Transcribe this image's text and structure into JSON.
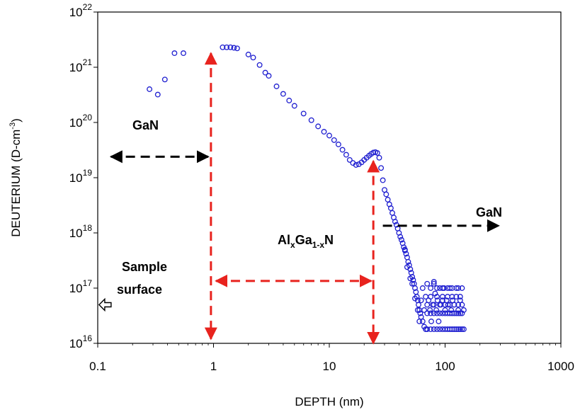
{
  "chart_data": {
    "type": "scatter",
    "title": "",
    "xlabel": "DEPTH  (nm)",
    "ylabel_main": "DEUTERIUM (D-cm",
    "ylabel_sup": "-3",
    "ylabel_close": ")",
    "x_scale": "log",
    "y_scale": "log",
    "xlim": [
      0.1,
      1000
    ],
    "ylim": [
      1e+16,
      1e+22
    ],
    "x_ticks": [
      {
        "value": 0.1,
        "label": "0.1"
      },
      {
        "value": 1,
        "label": "1"
      },
      {
        "value": 10,
        "label": "10"
      },
      {
        "value": 100,
        "label": "100"
      },
      {
        "value": 1000,
        "label": "1000"
      }
    ],
    "y_ticks": [
      {
        "value": 1e+16,
        "base": "10",
        "exp": "16"
      },
      {
        "value": 1e+17,
        "base": "10",
        "exp": "17"
      },
      {
        "value": 1e+18,
        "base": "10",
        "exp": "18"
      },
      {
        "value": 1e+19,
        "base": "10",
        "exp": "19"
      },
      {
        "value": 1e+20,
        "base": "10",
        "exp": "20"
      },
      {
        "value": 1e+21,
        "base": "10",
        "exp": "21"
      },
      {
        "value": 1e+22,
        "base": "10",
        "exp": "22"
      }
    ],
    "grid": false,
    "marker_color": "#1f1fd0",
    "series": [
      {
        "points": [
          [
            0.28,
            4e+20
          ],
          [
            0.33,
            3.2e+20
          ],
          [
            0.38,
            6e+20
          ],
          [
            0.46,
            1.8e+21
          ],
          [
            0.55,
            1.8e+21
          ],
          [
            1.2,
            2.3e+21
          ],
          [
            1.3,
            2.3e+21
          ],
          [
            1.4,
            2.3e+21
          ],
          [
            1.5,
            2.25e+21
          ],
          [
            1.6,
            2.2e+21
          ],
          [
            2.0,
            1.7e+21
          ],
          [
            2.2,
            1.5e+21
          ],
          [
            2.5,
            1.1e+21
          ],
          [
            2.8,
            8e+20
          ],
          [
            3.0,
            7e+20
          ],
          [
            3.5,
            4.5e+20
          ],
          [
            4.0,
            3.3e+20
          ],
          [
            4.5,
            2.5e+20
          ],
          [
            5.0,
            2e+20
          ],
          [
            6.0,
            1.45e+20
          ],
          [
            7.0,
            1.1e+20
          ],
          [
            8.0,
            8.5e+19
          ],
          [
            9.0,
            6.8e+19
          ],
          [
            10.0,
            5.8e+19
          ],
          [
            11.0,
            4.8e+19
          ],
          [
            12.0,
            4e+19
          ],
          [
            13.0,
            3.2e+19
          ],
          [
            14.0,
            2.6e+19
          ],
          [
            15.0,
            2.1e+19
          ],
          [
            16.0,
            1.85e+19
          ],
          [
            17.0,
            1.7e+19
          ],
          [
            18.0,
            1.75e+19
          ],
          [
            19.0,
            1.9e+19
          ],
          [
            20.0,
            2.1e+19
          ],
          [
            21.0,
            2.3e+19
          ],
          [
            22.0,
            2.5e+19
          ],
          [
            23.0,
            2.7e+19
          ],
          [
            24.0,
            2.85e+19
          ],
          [
            25.0,
            2.9e+19
          ],
          [
            26.0,
            2.8e+19
          ],
          [
            27.0,
            2.3e+19
          ],
          [
            28.0,
            1.5e+19
          ],
          [
            29.0,
            9e+18
          ],
          [
            30.0,
            6e+18
          ],
          [
            31.0,
            5e+18
          ],
          [
            32.0,
            4e+18
          ],
          [
            33.0,
            3.3e+18
          ],
          [
            34.0,
            2.8e+18
          ],
          [
            35.0,
            2.3e+18
          ],
          [
            36.0,
            1.9e+18
          ],
          [
            37.0,
            1.6e+18
          ],
          [
            38.0,
            1.4e+18
          ],
          [
            39.0,
            1.2e+18
          ],
          [
            40.0,
            1e+18
          ],
          [
            41.0,
            8.5e+17
          ],
          [
            42.0,
            7.5e+17
          ],
          [
            43.0,
            6.5e+17
          ],
          [
            44.0,
            5.5e+17
          ],
          [
            45.0,
            4.8e+17
          ],
          [
            46.0,
            4.2e+17
          ],
          [
            47.0,
            3.6e+17
          ],
          [
            48.0,
            3e+17
          ],
          [
            49.0,
            2.6e+17
          ],
          [
            50.0,
            2.2e+17
          ],
          [
            51.0,
            1.9e+17
          ],
          [
            52.0,
            1.6e+17
          ],
          [
            53.0,
            1.4e+17
          ],
          [
            54.0,
            1.2e+17
          ],
          [
            55.0,
            1e+17
          ],
          [
            56.0,
            8.5e+16
          ],
          [
            57.0,
            7e+16
          ],
          [
            58.0,
            6e+16
          ],
          [
            59.0,
            5e+16
          ],
          [
            60.0,
            4e+16
          ],
          [
            61.0,
            3.5e+16
          ],
          [
            62.0,
            3e+16
          ],
          [
            64.0,
            2.5e+16
          ],
          [
            66.0,
            2e+16
          ],
          [
            68.0,
            1.8e+16
          ],
          [
            45.0,
            5e+17
          ],
          [
            47.0,
            2.4e+17
          ],
          [
            50.0,
            1.5e+17
          ],
          [
            52.0,
            1.2e+17
          ],
          [
            55.0,
            6.5e+16
          ],
          [
            58.0,
            4e+16
          ],
          [
            60.0,
            2.5e+16
          ],
          [
            62.0,
            6e+16
          ],
          [
            64.0,
            1e+17
          ],
          [
            66.0,
            4e+16
          ],
          [
            68.0,
            7e+16
          ],
          [
            70.0,
            1.2e+17
          ],
          [
            72.0,
            6e+16
          ],
          [
            74.0,
            4e+16
          ],
          [
            76.0,
            2.5e+16
          ],
          [
            78.0,
            5e+16
          ],
          [
            80.0,
            1.2e+17
          ],
          [
            82.0,
            8e+16
          ],
          [
            84.0,
            4e+16
          ],
          [
            86.0,
            6e+16
          ],
          [
            88.0,
            2.5e+16
          ],
          [
            90.0,
            1e+17
          ],
          [
            92.0,
            5e+16
          ],
          [
            95.0,
            6e+16
          ],
          [
            98.0,
            1e+17
          ],
          [
            100.0,
            4e+16
          ],
          [
            103.0,
            6e+16
          ],
          [
            106.0,
            5e+16
          ],
          [
            110.0,
            1e+17
          ],
          [
            113.0,
            4e+16
          ],
          [
            116.0,
            6e+16
          ],
          [
            120.0,
            5e+16
          ],
          [
            125.0,
            1e+17
          ],
          [
            130.0,
            4e+16
          ],
          [
            135.0,
            6e+16
          ],
          [
            140.0,
            1e+17
          ],
          [
            145.0,
            4e+16
          ],
          [
            70.0,
            1.8e+16
          ],
          [
            75.0,
            1.8e+16
          ],
          [
            80.0,
            1.8e+16
          ],
          [
            85.0,
            1.8e+16
          ],
          [
            90.0,
            1.8e+16
          ],
          [
            95.0,
            1.8e+16
          ],
          [
            100.0,
            1.8e+16
          ],
          [
            105.0,
            1.8e+16
          ],
          [
            110.0,
            1.8e+16
          ],
          [
            115.0,
            1.8e+16
          ],
          [
            120.0,
            1.8e+16
          ],
          [
            125.0,
            1.8e+16
          ],
          [
            130.0,
            1.8e+16
          ],
          [
            135.0,
            1.8e+16
          ],
          [
            140.0,
            1.8e+16
          ],
          [
            145.0,
            1.8e+16
          ],
          [
            70.0,
            3.5e+16
          ],
          [
            75.0,
            3.5e+16
          ],
          [
            80.0,
            3.5e+16
          ],
          [
            85.0,
            3.5e+16
          ],
          [
            90.0,
            3.5e+16
          ],
          [
            95.0,
            3.5e+16
          ],
          [
            100.0,
            3.5e+16
          ],
          [
            105.0,
            3.5e+16
          ],
          [
            110.0,
            3.5e+16
          ],
          [
            115.0,
            3.5e+16
          ],
          [
            120.0,
            3.5e+16
          ],
          [
            125.0,
            3.5e+16
          ],
          [
            130.0,
            3.5e+16
          ],
          [
            135.0,
            3.5e+16
          ],
          [
            140.0,
            3.5e+16
          ],
          [
            70.0,
            5e+16
          ],
          [
            80.0,
            5e+16
          ],
          [
            90.0,
            5e+16
          ],
          [
            100.0,
            5e+16
          ],
          [
            110.0,
            5e+16
          ],
          [
            120.0,
            5e+16
          ],
          [
            130.0,
            5e+16
          ],
          [
            140.0,
            5e+16
          ],
          [
            75.0,
            7e+16
          ],
          [
            85.0,
            7e+16
          ],
          [
            95.0,
            7e+16
          ],
          [
            105.0,
            7e+16
          ],
          [
            115.0,
            7e+16
          ],
          [
            125.0,
            7e+16
          ],
          [
            135.0,
            7e+16
          ],
          [
            75.0,
            1e+17
          ],
          [
            85.0,
            1e+17
          ],
          [
            95.0,
            1e+17
          ],
          [
            105.0,
            1e+17
          ],
          [
            115.0,
            1e+17
          ],
          [
            130.0,
            1e+17
          ],
          [
            80.0,
            1.3e+17
          ]
        ]
      }
    ],
    "annotations": {
      "gan_top": "GaN",
      "gan_right": "GaN",
      "algan_prefix": "Al",
      "algan_x1": "x",
      "algan_mid": "Ga",
      "algan_x2": "1-x",
      "algan_suffix": "N",
      "sample_line1": "Sample",
      "sample_line2": "surface"
    },
    "arrows": {
      "black_color": "#000000",
      "red_color": "#e8231e",
      "black_left": {
        "x1": 0.13,
        "x2": 0.9,
        "y": 2.4e+19
      },
      "black_right": {
        "x1": 29.0,
        "x2": 290.0,
        "y": 1.35e+18
      },
      "red_vertical_1": {
        "x": 0.95,
        "y1": 1.8e+21,
        "y2": 1.2e+16
      },
      "red_vertical_2": {
        "x": 24.0,
        "y1": 2e+19,
        "y2": 1e+16
      },
      "red_horizontal": {
        "x1": 1.05,
        "x2": 23.0,
        "y": 1.35e+17
      },
      "surface_arrow": {
        "x": 0.115,
        "y": 5e+16
      }
    }
  }
}
